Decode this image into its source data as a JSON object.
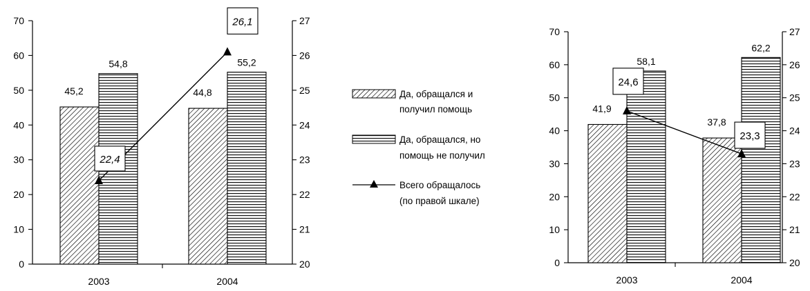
{
  "chart_data": [
    {
      "type": "bar",
      "categories": [
        "2003",
        "2004"
      ],
      "series": [
        {
          "name": "Да, обращался и получил помощь",
          "values": [
            45.2,
            44.8
          ],
          "pattern": "diagonal"
        },
        {
          "name": "Да, обращался, но помощь не получил",
          "values": [
            54.8,
            55.2
          ],
          "pattern": "horizontal"
        }
      ],
      "line_series": {
        "name": "Всего обращалось (по правой шкале)",
        "values": [
          22.4,
          26.1
        ],
        "labels": [
          "22,4",
          "26,1"
        ],
        "axis": "right"
      },
      "bar_labels": [
        [
          "45,2",
          "44,8"
        ],
        [
          "54,8",
          "55,2"
        ]
      ],
      "ylim_left": [
        0,
        70
      ],
      "yticks_left": [
        "0",
        "10",
        "20",
        "30",
        "40",
        "50",
        "60",
        "70"
      ],
      "ylim_right": [
        20,
        27
      ],
      "yticks_right": [
        "20",
        "21",
        "22",
        "23",
        "24",
        "25",
        "26",
        "27"
      ],
      "grid": false
    },
    {
      "type": "bar",
      "categories": [
        "2003",
        "2004"
      ],
      "series": [
        {
          "name": "Да, обращался и получил помощь",
          "values": [
            41.9,
            37.8
          ],
          "pattern": "diagonal"
        },
        {
          "name": "Да, обращался, но помощь не получил",
          "values": [
            58.1,
            62.2
          ],
          "pattern": "horizontal"
        }
      ],
      "line_series": {
        "name": "Всего обращалось (по правой шкале)",
        "values": [
          24.6,
          23.3
        ],
        "labels": [
          "24,6",
          "23,3"
        ],
        "axis": "right"
      },
      "bar_labels": [
        [
          "41,9",
          "37,8"
        ],
        [
          "58,1",
          "62,2"
        ]
      ],
      "ylim_left": [
        0,
        70
      ],
      "yticks_left": [
        "0",
        "10",
        "20",
        "30",
        "40",
        "50",
        "60",
        "70"
      ],
      "ylim_right": [
        20,
        27
      ],
      "yticks_right": [
        "20",
        "21",
        "22",
        "23",
        "24",
        "25",
        "26",
        "27"
      ],
      "grid": false
    }
  ],
  "legend": {
    "items": [
      {
        "line1": "Да, обращался и",
        "line2": "получил помощь",
        "kind": "diagonal"
      },
      {
        "line1": "Да, обращался, но",
        "line2": "помощь не получил",
        "kind": "horizontal"
      },
      {
        "line1": "Всего обращалось",
        "line2": "(по правой шкале)",
        "kind": "line"
      }
    ]
  }
}
